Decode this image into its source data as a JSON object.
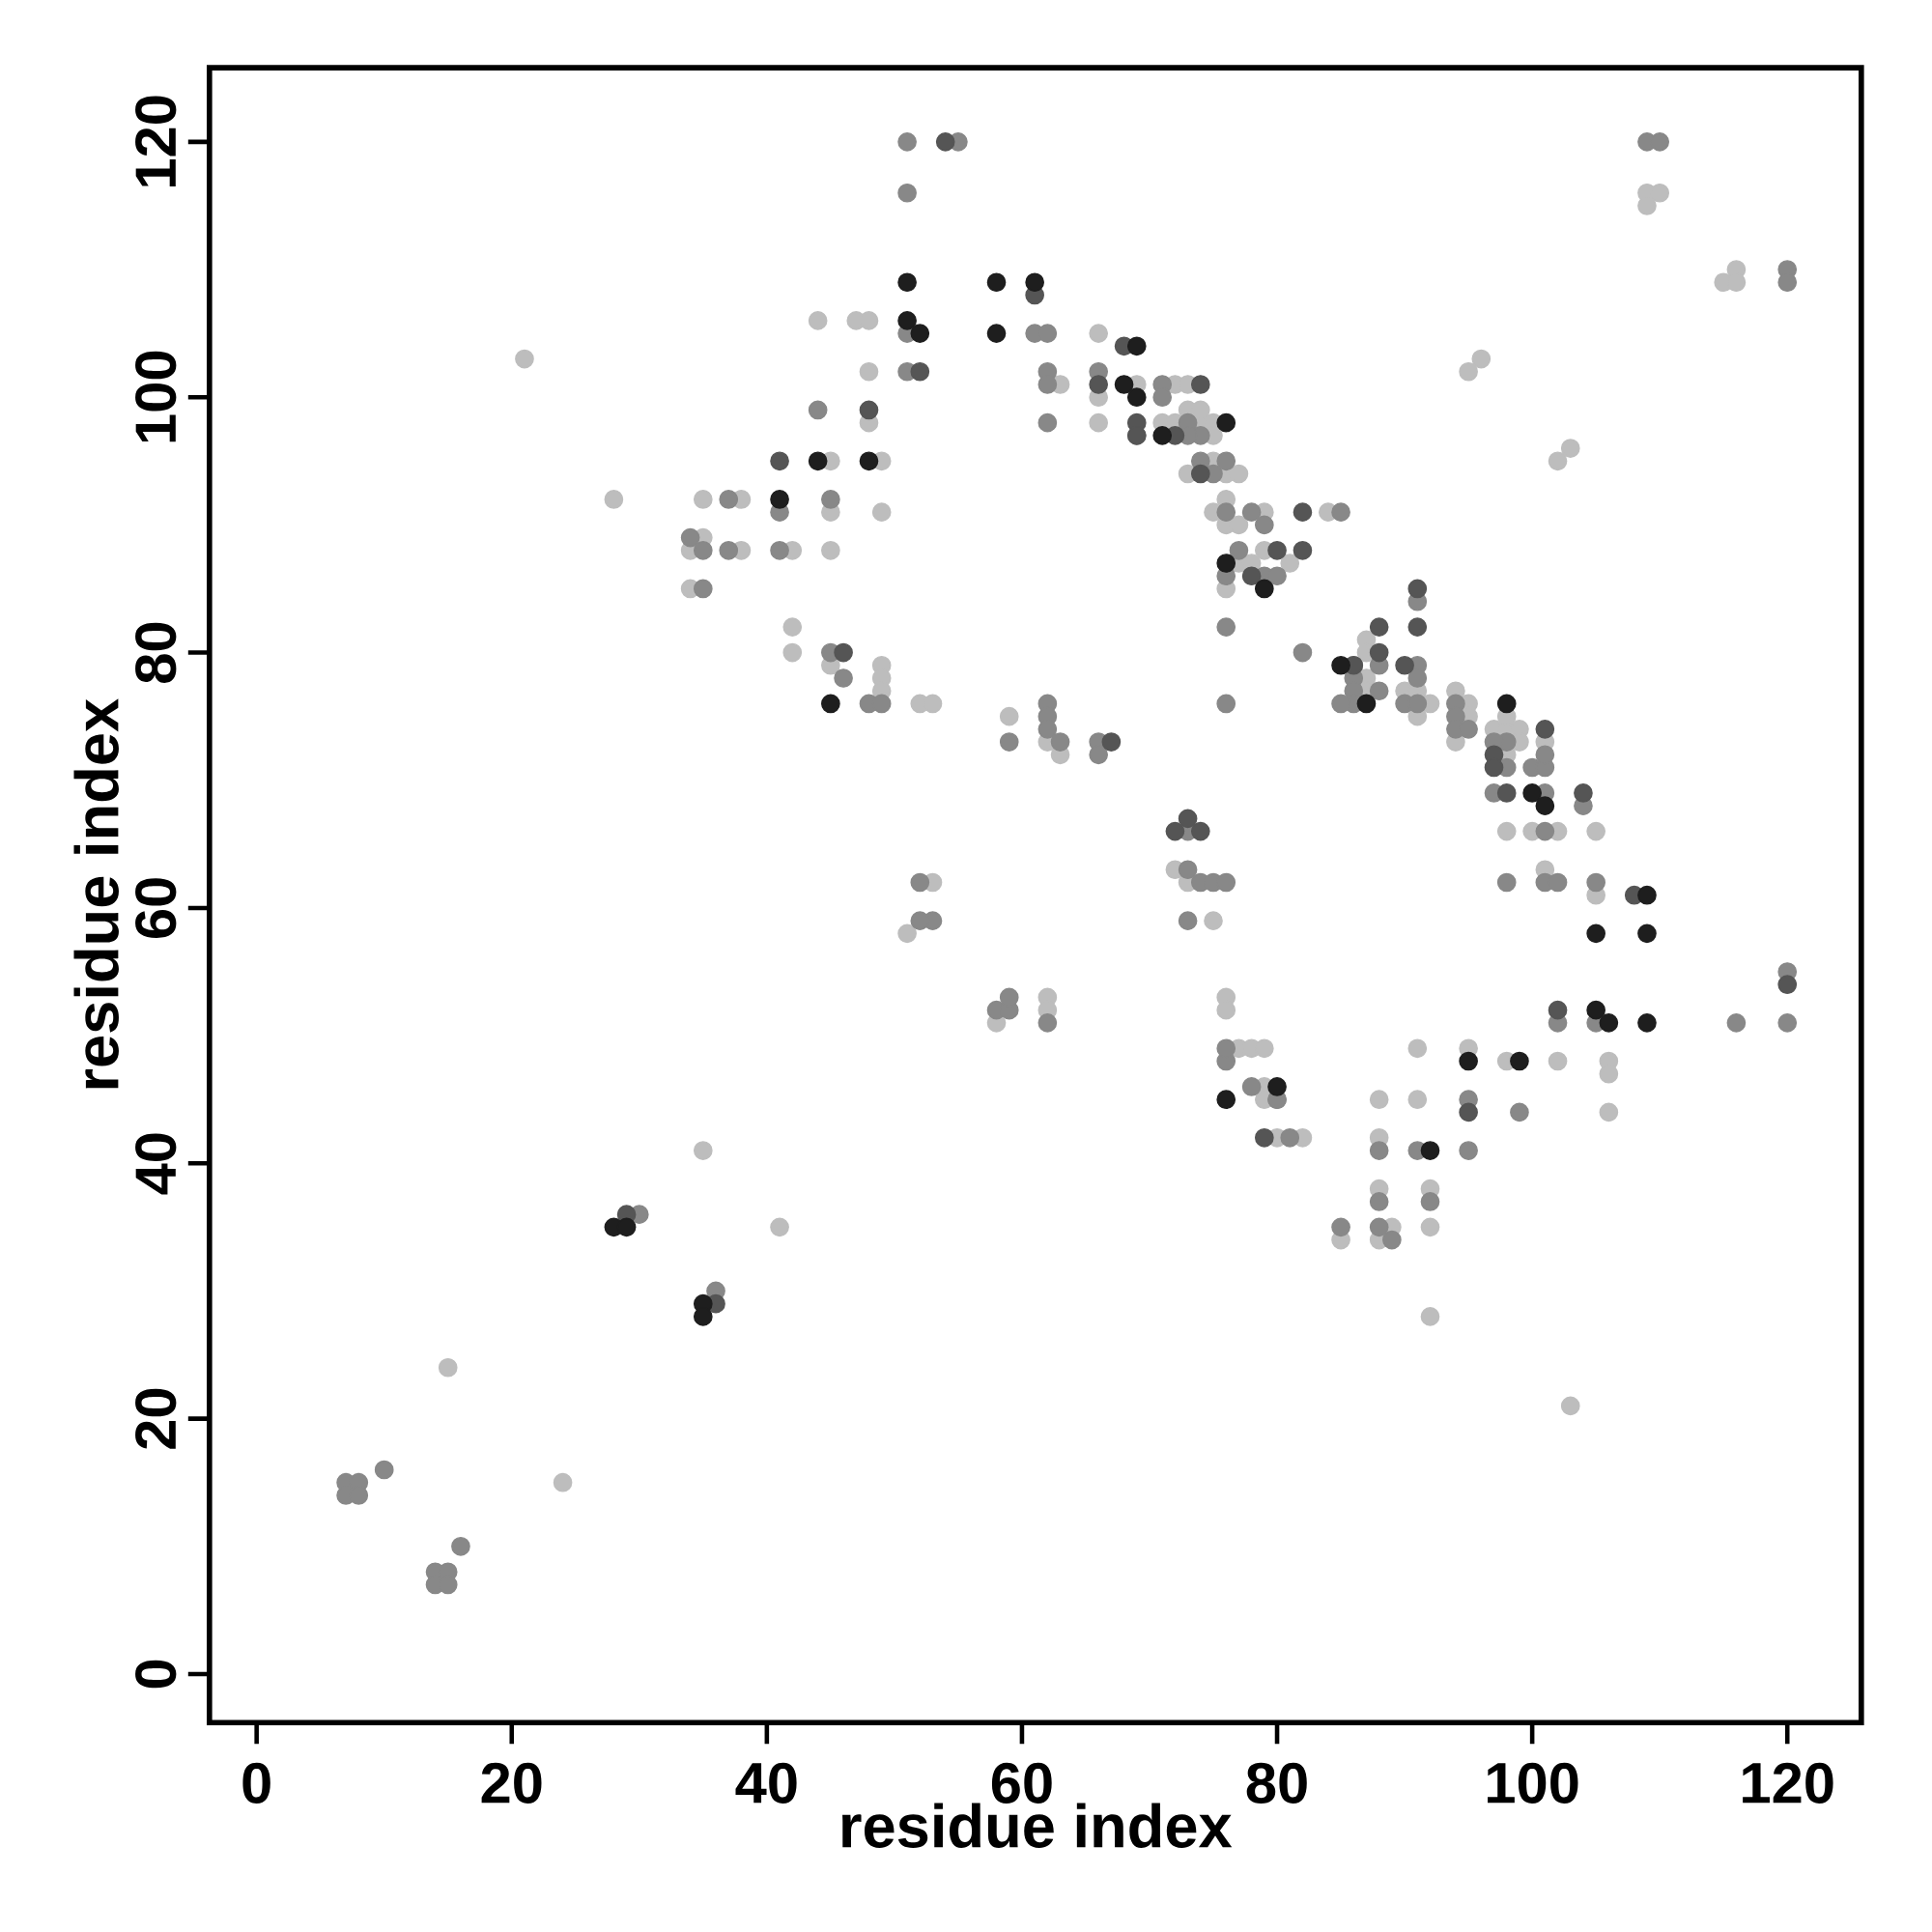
{
  "chart_data": {
    "type": "scatter",
    "xlabel": "residue index",
    "ylabel": "residue index",
    "xlim": [
      -3.7,
      125.8
    ],
    "ylim": [
      -3.8,
      125.8
    ],
    "xticks": [
      0,
      20,
      40,
      60,
      80,
      100,
      120
    ],
    "yticks": [
      0,
      20,
      40,
      60,
      80,
      100,
      120
    ],
    "marker": "circle",
    "grid": false,
    "series": [
      {
        "color": "#bdbdbd",
        "x": [
          15,
          24,
          21,
          28,
          35,
          41,
          35,
          34,
          34,
          35,
          38,
          38,
          42,
          42,
          42,
          44,
          45,
          45,
          45,
          45,
          47,
          48,
          48,
          48,
          49,
          49,
          49,
          49,
          49,
          52,
          53,
          53,
          51,
          63,
          59,
          62,
          63,
          58,
          62,
          62,
          66,
          66,
          66,
          69,
          72,
          73,
          71,
          72,
          74,
          73,
          74,
          73,
          75,
          76,
          77,
          75,
          76,
          76,
          77,
          79,
          75,
          75,
          77,
          78,
          79,
          81,
          84,
          76,
          72,
          73,
          75,
          76,
          76,
          77,
          78,
          79,
          79,
          79,
          80,
          82,
          87,
          87,
          87,
          87,
          90,
          91,
          92,
          91,
          94,
          95,
          95,
          94,
          97,
          98,
          99,
          98,
          98,
          99,
          101,
          98,
          100,
          102,
          101,
          105,
          105,
          102,
          103,
          95,
          96,
          109,
          110,
          109,
          115,
          116,
          116,
          91,
          95,
          98,
          102,
          106,
          106,
          106,
          91,
          88,
          88,
          92,
          88,
          85,
          89,
          88,
          92,
          92,
          103
        ],
        "values": [
          24,
          15,
          103,
          92,
          41,
          35,
          89,
          88,
          85,
          92,
          92,
          88,
          88,
          82,
          80,
          106,
          95,
          91,
          88,
          79,
          106,
          106,
          102,
          98,
          95,
          91,
          79,
          78,
          77,
          76,
          76,
          62,
          58,
          101,
          75,
          73,
          72,
          51,
          53,
          52,
          105,
          100,
          98,
          101,
          101,
          101,
          98,
          98,
          98,
          99,
          99,
          94,
          95,
          94,
          94,
          91,
          92,
          90,
          90,
          91,
          98,
          97,
          87,
          87,
          88,
          87,
          91,
          85,
          63,
          62,
          59,
          53,
          52,
          49,
          49,
          49,
          46,
          45,
          42,
          42,
          81,
          80,
          78,
          77,
          77,
          77,
          76,
          75,
          77,
          76,
          75,
          73,
          74,
          74,
          74,
          72,
          75,
          73,
          73,
          66,
          66,
          66,
          63,
          66,
          61,
          95,
          96,
          102,
          103,
          116,
          116,
          115,
          109,
          110,
          109,
          49,
          49,
          48,
          48,
          48,
          47,
          44,
          45,
          45,
          42,
          38,
          38,
          34,
          35,
          34,
          35,
          28,
          21
        ]
      },
      {
        "color": "#888888",
        "x": [
          7,
          8,
          7,
          8,
          10,
          14,
          15,
          14,
          15,
          16,
          30,
          36,
          34,
          35,
          35,
          37,
          37,
          41,
          41,
          44,
          45,
          45,
          46,
          48,
          49,
          51,
          51,
          55,
          51,
          51,
          52,
          53,
          52,
          61,
          62,
          62,
          62,
          62,
          59,
          62,
          62,
          62,
          63,
          66,
          58,
          59,
          59,
          62,
          66,
          66,
          69,
          71,
          73,
          74,
          71,
          73,
          74,
          75,
          76,
          76,
          78,
          77,
          79,
          80,
          85,
          76,
          76,
          79,
          80,
          76,
          73,
          73,
          74,
          75,
          76,
          73,
          76,
          78,
          80,
          81,
          76,
          82,
          86,
          86,
          86,
          85,
          86,
          88,
          88,
          91,
          91,
          91,
          90,
          91,
          94,
          94,
          94,
          95,
          97,
          98,
          98,
          97,
          100,
          101,
          101,
          101,
          101,
          98,
          101,
          102,
          104,
          105,
          102,
          105,
          116,
          120,
          120,
          109,
          110,
          120,
          120,
          99,
          95,
          95,
          92,
          91,
          88,
          88,
          85,
          88,
          89
        ],
        "values": [
          15,
          15,
          14,
          14,
          16,
          8,
          8,
          7,
          7,
          10,
          36,
          30,
          89,
          88,
          85,
          92,
          88,
          91,
          88,
          99,
          92,
          80,
          78,
          76,
          76,
          120,
          116,
          120,
          105,
          102,
          62,
          59,
          59,
          105,
          105,
          102,
          101,
          98,
          73,
          76,
          75,
          74,
          73,
          102,
          52,
          52,
          53,
          51,
          73,
          72,
          97,
          101,
          98,
          97,
          100,
          97,
          95,
          94,
          95,
          91,
          91,
          88,
          86,
          86,
          91,
          86,
          48,
          90,
          45,
          49,
          66,
          63,
          62,
          62,
          62,
          59,
          82,
          46,
          45,
          42,
          76,
          80,
          78,
          77,
          76,
          76,
          79,
          79,
          77,
          84,
          79,
          78,
          76,
          76,
          76,
          75,
          74,
          74,
          69,
          73,
          71,
          73,
          71,
          71,
          72,
          69,
          66,
          62,
          62,
          62,
          68,
          62,
          51,
          51,
          51,
          55,
          51,
          120,
          120,
          110,
          109,
          44,
          45,
          41,
          37,
          41,
          41,
          37,
          35,
          35,
          34
        ]
      },
      {
        "color": "#555555",
        "x": [
          29,
          36,
          41,
          46,
          48,
          52,
          54,
          61,
          66,
          68,
          69,
          67,
          69,
          74,
          72,
          74,
          72,
          74,
          73,
          80,
          78,
          82,
          82,
          79,
          86,
          88,
          88,
          91,
          91,
          90,
          97,
          97,
          98,
          101,
          104,
          108,
          102,
          120,
          95
        ],
        "values": [
          36,
          29,
          95,
          80,
          99,
          102,
          120,
          108,
          101,
          104,
          98,
          73,
          97,
          101,
          97,
          94,
          66,
          66,
          67,
          88,
          86,
          88,
          91,
          42,
          79,
          82,
          80,
          85,
          82,
          79,
          72,
          71,
          69,
          74,
          69,
          61,
          52,
          54,
          44
        ]
      },
      {
        "color": "#1e1e1e",
        "x": [
          28,
          29,
          35,
          35,
          41,
          44,
          45,
          48,
          51,
          51,
          52,
          58,
          58,
          61,
          69,
          68,
          69,
          71,
          76,
          76,
          79,
          76,
          80,
          85,
          87,
          98,
          100,
          101,
          109,
          105,
          109,
          105,
          106,
          109,
          95,
          99,
          92
        ],
        "values": [
          35,
          35,
          29,
          28,
          92,
          95,
          76,
          95,
          109,
          106,
          105,
          109,
          105,
          109,
          104,
          101,
          100,
          97,
          98,
          87,
          85,
          45,
          46,
          79,
          76,
          76,
          69,
          68,
          61,
          58,
          58,
          52,
          51,
          51,
          48,
          48,
          41
        ]
      }
    ]
  }
}
